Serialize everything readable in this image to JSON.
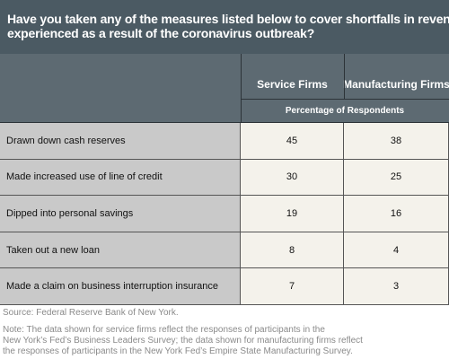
{
  "header": {
    "title": [
      "Have you taken any of the measures listed below to cover shortfalls in revenues",
      "experienced as a result of the coronavirus outbreak?"
    ]
  },
  "table": {
    "columns": [
      "Service Firms",
      "Manufacturing Firms"
    ],
    "subheader": "Percentage of Respondents",
    "rows": [
      [
        "Drawn down cash reserves",
        45,
        38
      ],
      [
        "Made increased use of line of credit",
        30,
        25
      ],
      [
        "Dipped into personal savings",
        19,
        16
      ],
      [
        "Taken out a new loan",
        8,
        4
      ],
      [
        "Made a claim on business interruption insurance",
        7,
        3
      ]
    ]
  },
  "source": "Source: Federal Reserve Bank of New York.",
  "note": [
    "Note: The data shown for service firms reflect the responses of participants in the",
    "New York’s Fed’s Business Leaders Survey; the data shown for manufacturing firms reflect",
    "the responses of participants in the New York Fed’s Empire State Manufacturing Survey."
  ]
}
